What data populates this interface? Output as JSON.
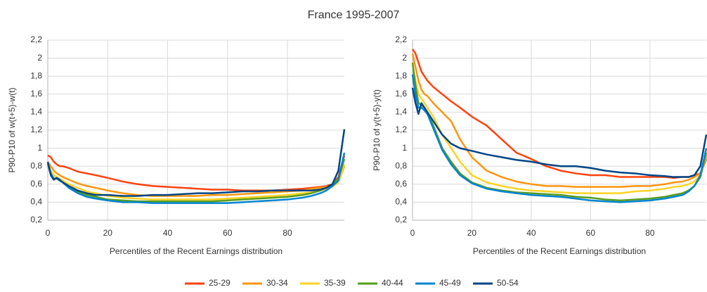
{
  "title": "France 1995-2007",
  "chart_data": [
    {
      "type": "line",
      "xlabel": "Percentiles of the Recent Earnings distribution",
      "ylabel": "P90-P10 of w(t+5)-w(t)",
      "x": [
        0,
        1,
        2,
        3,
        4,
        5,
        7,
        10,
        13,
        16,
        20,
        25,
        30,
        35,
        40,
        45,
        50,
        55,
        60,
        65,
        70,
        75,
        80,
        85,
        88,
        91,
        93,
        95,
        97,
        99
      ],
      "xlim": [
        0,
        99
      ],
      "ylim": [
        0.2,
        2.2
      ],
      "xticks": [
        0,
        20,
        40,
        60,
        80
      ],
      "yticks": [
        {
          "value": 0.2,
          "label": "0,2"
        },
        {
          "value": 0.4,
          "label": "0,4"
        },
        {
          "value": 0.6,
          "label": "0,6"
        },
        {
          "value": 0.8,
          "label": "0,8"
        },
        1,
        {
          "value": 1.2,
          "label": "1,2"
        },
        {
          "value": 1.4,
          "label": "1,4"
        },
        {
          "value": 1.6,
          "label": "1,6"
        },
        {
          "value": 1.8,
          "label": "1,8"
        },
        2,
        {
          "value": 2.2,
          "label": "2,2"
        }
      ],
      "grid": true,
      "series": [
        {
          "name": "25-29",
          "color": "#ff420e",
          "values": [
            0.92,
            0.9,
            0.85,
            0.82,
            0.8,
            0.8,
            0.78,
            0.74,
            0.72,
            0.7,
            0.67,
            0.63,
            0.6,
            0.58,
            0.57,
            0.56,
            0.55,
            0.54,
            0.54,
            0.53,
            0.53,
            0.53,
            0.54,
            0.55,
            0.56,
            0.57,
            0.58,
            0.6,
            0.68,
            0.92
          ]
        },
        {
          "name": "30-34",
          "color": "#ff950e",
          "values": [
            0.85,
            0.8,
            0.75,
            0.72,
            0.7,
            0.68,
            0.65,
            0.61,
            0.58,
            0.56,
            0.53,
            0.5,
            0.48,
            0.47,
            0.47,
            0.47,
            0.47,
            0.48,
            0.48,
            0.49,
            0.5,
            0.51,
            0.52,
            0.53,
            0.55,
            0.56,
            0.57,
            0.58,
            0.62,
            0.8
          ]
        },
        {
          "name": "35-39",
          "color": "#ffd320",
          "values": [
            0.83,
            0.75,
            0.7,
            0.68,
            0.66,
            0.64,
            0.6,
            0.56,
            0.52,
            0.5,
            0.47,
            0.45,
            0.44,
            0.43,
            0.43,
            0.43,
            0.43,
            0.43,
            0.44,
            0.45,
            0.46,
            0.47,
            0.48,
            0.5,
            0.51,
            0.53,
            0.55,
            0.57,
            0.62,
            0.82
          ]
        },
        {
          "name": "40-44",
          "color": "#579d1c",
          "values": [
            0.82,
            0.72,
            0.66,
            0.66,
            0.64,
            0.62,
            0.57,
            0.52,
            0.48,
            0.46,
            0.43,
            0.42,
            0.41,
            0.41,
            0.41,
            0.41,
            0.41,
            0.41,
            0.42,
            0.43,
            0.44,
            0.45,
            0.46,
            0.48,
            0.5,
            0.53,
            0.56,
            0.6,
            0.66,
            0.88
          ]
        },
        {
          "name": "45-49",
          "color": "#0084d1",
          "values": [
            0.85,
            0.72,
            0.66,
            0.67,
            0.64,
            0.62,
            0.56,
            0.5,
            0.46,
            0.44,
            0.42,
            0.4,
            0.4,
            0.39,
            0.39,
            0.39,
            0.39,
            0.39,
            0.39,
            0.4,
            0.41,
            0.42,
            0.43,
            0.45,
            0.47,
            0.5,
            0.53,
            0.58,
            0.64,
            0.95
          ]
        },
        {
          "name": "50-54",
          "color": "#004586",
          "values": [
            0.84,
            0.7,
            0.65,
            0.67,
            0.65,
            0.62,
            0.58,
            0.53,
            0.5,
            0.48,
            0.48,
            0.47,
            0.47,
            0.48,
            0.48,
            0.49,
            0.5,
            0.5,
            0.51,
            0.52,
            0.52,
            0.53,
            0.53,
            0.53,
            0.53,
            0.54,
            0.56,
            0.6,
            0.75,
            1.21
          ]
        }
      ]
    },
    {
      "type": "line",
      "xlabel": "Percentiles of the Recent Earnings distribution",
      "ylabel": "P90-P10 of y(t+5)-y(t)",
      "x": [
        0,
        1,
        2,
        3,
        4,
        5,
        7,
        10,
        13,
        16,
        20,
        25,
        30,
        35,
        40,
        45,
        50,
        55,
        60,
        65,
        70,
        75,
        80,
        85,
        88,
        91,
        93,
        95,
        97,
        99
      ],
      "xlim": [
        0,
        99
      ],
      "ylim": [
        0.2,
        2.2
      ],
      "xticks": [
        0,
        20,
        40,
        60,
        80
      ],
      "yticks": [
        {
          "value": 0.2,
          "label": "0,2"
        },
        {
          "value": 0.4,
          "label": "0,4"
        },
        {
          "value": 0.6,
          "label": "0,6"
        },
        {
          "value": 0.8,
          "label": "0,8"
        },
        1,
        {
          "value": 1.2,
          "label": "1,2"
        },
        {
          "value": 1.4,
          "label": "1,4"
        },
        {
          "value": 1.6,
          "label": "1,6"
        },
        {
          "value": 1.8,
          "label": "1,8"
        },
        2,
        {
          "value": 2.2,
          "label": "2,2"
        }
      ],
      "grid": true,
      "series": [
        {
          "name": "25-29",
          "color": "#ff420e",
          "values": [
            2.1,
            2.05,
            1.95,
            1.85,
            1.8,
            1.75,
            1.68,
            1.6,
            1.52,
            1.45,
            1.35,
            1.25,
            1.1,
            0.95,
            0.88,
            0.8,
            0.75,
            0.72,
            0.7,
            0.7,
            0.68,
            0.68,
            0.68,
            0.68,
            0.67,
            0.68,
            0.68,
            0.7,
            0.72,
            0.88
          ]
        },
        {
          "name": "30-34",
          "color": "#ff950e",
          "values": [
            2.05,
            1.9,
            1.75,
            1.65,
            1.6,
            1.58,
            1.5,
            1.4,
            1.3,
            1.1,
            0.9,
            0.75,
            0.68,
            0.63,
            0.6,
            0.58,
            0.58,
            0.57,
            0.57,
            0.57,
            0.57,
            0.58,
            0.58,
            0.6,
            0.62,
            0.63,
            0.65,
            0.68,
            0.72,
            0.9
          ]
        },
        {
          "name": "35-39",
          "color": "#ffd320",
          "values": [
            1.92,
            1.75,
            1.6,
            1.55,
            1.5,
            1.45,
            1.35,
            1.15,
            1.0,
            0.85,
            0.7,
            0.62,
            0.58,
            0.55,
            0.53,
            0.52,
            0.51,
            0.5,
            0.5,
            0.5,
            0.5,
            0.52,
            0.53,
            0.55,
            0.57,
            0.58,
            0.6,
            0.63,
            0.7,
            0.92
          ]
        },
        {
          "name": "40-44",
          "color": "#579d1c",
          "values": [
            1.95,
            1.7,
            1.5,
            1.48,
            1.45,
            1.4,
            1.25,
            1.0,
            0.85,
            0.72,
            0.62,
            0.56,
            0.53,
            0.51,
            0.5,
            0.49,
            0.48,
            0.46,
            0.45,
            0.43,
            0.42,
            0.43,
            0.44,
            0.46,
            0.48,
            0.5,
            0.53,
            0.58,
            0.68,
            0.95
          ]
        },
        {
          "name": "45-49",
          "color": "#0084d1",
          "values": [
            1.82,
            1.6,
            1.45,
            1.45,
            1.42,
            1.38,
            1.22,
            0.98,
            0.82,
            0.7,
            0.61,
            0.55,
            0.52,
            0.5,
            0.48,
            0.47,
            0.46,
            0.44,
            0.42,
            0.41,
            0.4,
            0.41,
            0.42,
            0.44,
            0.46,
            0.48,
            0.52,
            0.58,
            0.7,
            1.0
          ]
        },
        {
          "name": "50-54",
          "color": "#004586",
          "values": [
            1.67,
            1.5,
            1.38,
            1.5,
            1.45,
            1.4,
            1.3,
            1.15,
            1.05,
            1.0,
            0.97,
            0.93,
            0.9,
            0.87,
            0.85,
            0.82,
            0.8,
            0.8,
            0.78,
            0.75,
            0.73,
            0.72,
            0.7,
            0.69,
            0.68,
            0.68,
            0.68,
            0.7,
            0.8,
            1.15
          ]
        }
      ]
    }
  ]
}
